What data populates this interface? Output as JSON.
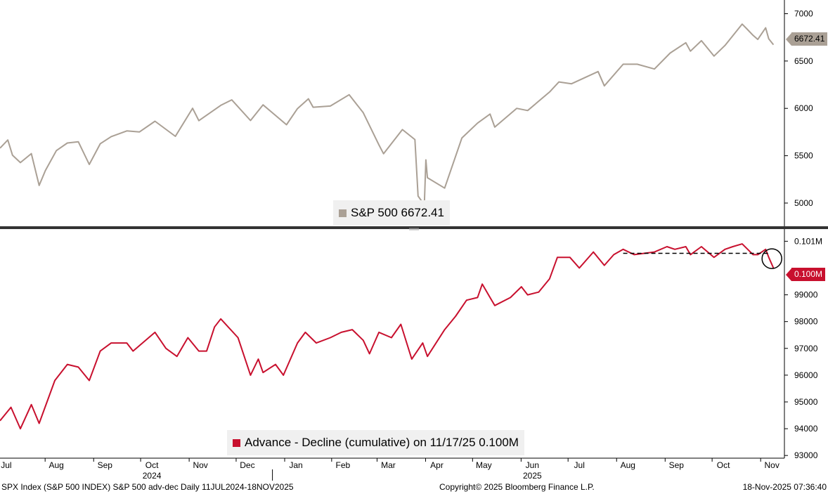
{
  "chart_data": [
    {
      "type": "line",
      "series": [
        {
          "name": "S&P 500",
          "color": "#aaa095",
          "points": [
            [
              "2024-07-11",
              5580
            ],
            [
              "2024-07-16",
              5666
            ],
            [
              "2024-07-19",
              5505
            ],
            [
              "2024-07-24",
              5427
            ],
            [
              "2024-07-31",
              5522
            ],
            [
              "2024-08-05",
              5186
            ],
            [
              "2024-08-09",
              5344
            ],
            [
              "2024-08-16",
              5554
            ],
            [
              "2024-08-23",
              5634
            ],
            [
              "2024-08-30",
              5648
            ],
            [
              "2024-09-06",
              5408
            ],
            [
              "2024-09-13",
              5626
            ],
            [
              "2024-09-20",
              5702
            ],
            [
              "2024-09-30",
              5762
            ],
            [
              "2024-10-08",
              5751
            ],
            [
              "2024-10-18",
              5864
            ],
            [
              "2024-10-31",
              5705
            ],
            [
              "2024-11-11",
              6001
            ],
            [
              "2024-11-15",
              5870
            ],
            [
              "2024-11-29",
              6032
            ],
            [
              "2024-12-06",
              6090
            ],
            [
              "2024-12-18",
              5872
            ],
            [
              "2024-12-26",
              6037
            ],
            [
              "2025-01-10",
              5827
            ],
            [
              "2025-01-17",
              5997
            ],
            [
              "2025-01-24",
              6101
            ],
            [
              "2025-01-27",
              6012
            ],
            [
              "2025-02-07",
              6025
            ],
            [
              "2025-02-19",
              6144
            ],
            [
              "2025-02-28",
              5954
            ],
            [
              "2025-03-10",
              5614
            ],
            [
              "2025-03-13",
              5521
            ],
            [
              "2025-03-25",
              5776
            ],
            [
              "2025-04-02",
              5671
            ],
            [
              "2025-04-04",
              5074
            ],
            [
              "2025-04-08",
              4982
            ],
            [
              "2025-04-09",
              5456
            ],
            [
              "2025-04-10",
              5268
            ],
            [
              "2025-04-21",
              5158
            ],
            [
              "2025-05-02",
              5687
            ],
            [
              "2025-05-12",
              5844
            ],
            [
              "2025-05-20",
              5940
            ],
            [
              "2025-05-23",
              5802
            ],
            [
              "2025-06-06",
              6000
            ],
            [
              "2025-06-13",
              5977
            ],
            [
              "2025-06-27",
              6173
            ],
            [
              "2025-07-03",
              6279
            ],
            [
              "2025-07-11",
              6260
            ],
            [
              "2025-07-28",
              6389
            ],
            [
              "2025-08-01",
              6238
            ],
            [
              "2025-08-13",
              6466
            ],
            [
              "2025-08-22",
              6466
            ],
            [
              "2025-09-02",
              6416
            ],
            [
              "2025-09-12",
              6584
            ],
            [
              "2025-09-22",
              6693
            ],
            [
              "2025-09-25",
              6604
            ],
            [
              "2025-10-02",
              6715
            ],
            [
              "2025-10-10",
              6552
            ],
            [
              "2025-10-17",
              6664
            ],
            [
              "2025-10-28",
              6890
            ],
            [
              "2025-10-31",
              6840
            ],
            [
              "2025-11-04",
              6771
            ],
            [
              "2025-11-07",
              6728
            ],
            [
              "2025-11-12",
              6851
            ],
            [
              "2025-11-14",
              6734
            ],
            [
              "2025-11-17",
              6672.41
            ]
          ]
        }
      ],
      "ylim": [
        4740,
        7100
      ],
      "yticks": [
        "5000",
        "5500",
        "6000",
        "6500",
        "7000"
      ],
      "last_value_label": "6672.41",
      "legend": "S&P 500 6672.41",
      "legend_position": "bottom-center",
      "grid": false
    },
    {
      "type": "line",
      "series": [
        {
          "name": "Advance - Decline (cumulative)",
          "color": "#c8102e",
          "points": [
            [
              "2024-07-11",
              94300
            ],
            [
              "2024-07-18",
              94800
            ],
            [
              "2024-07-24",
              94000
            ],
            [
              "2024-07-31",
              94900
            ],
            [
              "2024-08-05",
              94200
            ],
            [
              "2024-08-15",
              95800
            ],
            [
              "2024-08-23",
              96400
            ],
            [
              "2024-08-30",
              96300
            ],
            [
              "2024-09-06",
              95800
            ],
            [
              "2024-09-13",
              96900
            ],
            [
              "2024-09-20",
              97200
            ],
            [
              "2024-09-30",
              97200
            ],
            [
              "2024-10-04",
              96900
            ],
            [
              "2024-10-10",
              97200
            ],
            [
              "2024-10-18",
              97600
            ],
            [
              "2024-10-25",
              97000
            ],
            [
              "2024-11-01",
              96700
            ],
            [
              "2024-11-08",
              97400
            ],
            [
              "2024-11-15",
              96900
            ],
            [
              "2024-11-20",
              96900
            ],
            [
              "2024-11-25",
              97800
            ],
            [
              "2024-11-29",
              98100
            ],
            [
              "2024-12-10",
              97400
            ],
            [
              "2024-12-18",
              96000
            ],
            [
              "2024-12-23",
              96600
            ],
            [
              "2024-12-26",
              96100
            ],
            [
              "2025-01-03",
              96400
            ],
            [
              "2025-01-08",
              96000
            ],
            [
              "2025-01-17",
              97200
            ],
            [
              "2025-01-22",
              97600
            ],
            [
              "2025-01-29",
              97200
            ],
            [
              "2025-02-07",
              97400
            ],
            [
              "2025-02-14",
              97600
            ],
            [
              "2025-02-21",
              97700
            ],
            [
              "2025-02-28",
              97300
            ],
            [
              "2025-03-04",
              96800
            ],
            [
              "2025-03-10",
              97600
            ],
            [
              "2025-03-18",
              97400
            ],
            [
              "2025-03-24",
              97900
            ],
            [
              "2025-03-31",
              96600
            ],
            [
              "2025-04-07",
              97200
            ],
            [
              "2025-04-10",
              96700
            ],
            [
              "2025-04-21",
              97700
            ],
            [
              "2025-04-28",
              98200
            ],
            [
              "2025-05-05",
              98800
            ],
            [
              "2025-05-12",
              98900
            ],
            [
              "2025-05-15",
              99400
            ],
            [
              "2025-05-20",
              98900
            ],
            [
              "2025-05-23",
              98600
            ],
            [
              "2025-06-02",
              98900
            ],
            [
              "2025-06-09",
              99300
            ],
            [
              "2025-06-13",
              99000
            ],
            [
              "2025-06-20",
              99100
            ],
            [
              "2025-06-27",
              99600
            ],
            [
              "2025-07-02",
              100400
            ],
            [
              "2025-07-10",
              100400
            ],
            [
              "2025-07-16",
              100000
            ],
            [
              "2025-07-25",
              100600
            ],
            [
              "2025-08-01",
              100100
            ],
            [
              "2025-08-07",
              100500
            ],
            [
              "2025-08-13",
              100700
            ],
            [
              "2025-08-20",
              100500
            ],
            [
              "2025-09-02",
              100600
            ],
            [
              "2025-09-10",
              100800
            ],
            [
              "2025-09-15",
              100700
            ],
            [
              "2025-09-22",
              100800
            ],
            [
              "2025-09-25",
              100500
            ],
            [
              "2025-10-02",
              100800
            ],
            [
              "2025-10-10",
              100400
            ],
            [
              "2025-10-17",
              100700
            ],
            [
              "2025-10-22",
              100800
            ],
            [
              "2025-10-28",
              100900
            ],
            [
              "2025-11-04",
              100500
            ],
            [
              "2025-11-07",
              100500
            ],
            [
              "2025-11-12",
              100700
            ],
            [
              "2025-11-14",
              100400
            ],
            [
              "2025-11-17",
              100000
            ]
          ]
        }
      ],
      "ylim": [
        92900,
        101350
      ],
      "yticks": [
        "93000",
        "94000",
        "95000",
        "96000",
        "97000",
        "98000",
        "99000",
        "0.101M"
      ],
      "last_value_label": "0.100M",
      "legend": "Advance - Decline (cumulative) on 11/17/25 0.100M",
      "legend_position": "bottom-center",
      "annotations": [
        "dashed horizontal support line from Aug 2025 to Nov 2025",
        "circle around latest value"
      ],
      "grid": false
    }
  ],
  "x_axis": {
    "months": [
      {
        "label": "Jul",
        "date": "2024-07-15"
      },
      {
        "label": "Aug",
        "date": "2024-08-16"
      },
      {
        "label": "Sep",
        "date": "2024-09-16"
      },
      {
        "label": "Oct",
        "date": "2024-10-16"
      },
      {
        "label": "Nov",
        "date": "2024-11-16"
      },
      {
        "label": "Dec",
        "date": "2024-12-16"
      },
      {
        "label": "Jan",
        "date": "2025-01-16"
      },
      {
        "label": "Feb",
        "date": "2025-02-15"
      },
      {
        "label": "Mar",
        "date": "2025-03-16"
      },
      {
        "label": "Apr",
        "date": "2025-04-16"
      },
      {
        "label": "May",
        "date": "2025-05-16"
      },
      {
        "label": "Jun",
        "date": "2025-06-16"
      },
      {
        "label": "Jul",
        "date": "2025-07-16"
      },
      {
        "label": "Aug",
        "date": "2025-08-16"
      },
      {
        "label": "Sep",
        "date": "2025-09-16"
      },
      {
        "label": "Oct",
        "date": "2025-10-16"
      },
      {
        "label": "Nov",
        "date": "2025-11-16"
      }
    ],
    "years": [
      {
        "label": "2024",
        "date": "2024-10-16"
      },
      {
        "label": "2025",
        "date": "2025-06-16"
      }
    ],
    "range": [
      "2024-07-11",
      "2025-11-24"
    ]
  },
  "footer": {
    "left": "SPX Index (S&P 500 INDEX) S&P 500 adv-dec Daily 11JUL2024-18NOV2025",
    "middle": "Copyright© 2025 Bloomberg Finance L.P.",
    "right": "18-Nov-2025 07:36:40"
  },
  "colors": {
    "spx": "#aaa095",
    "ad": "#c8102e",
    "divider": "#333333"
  }
}
